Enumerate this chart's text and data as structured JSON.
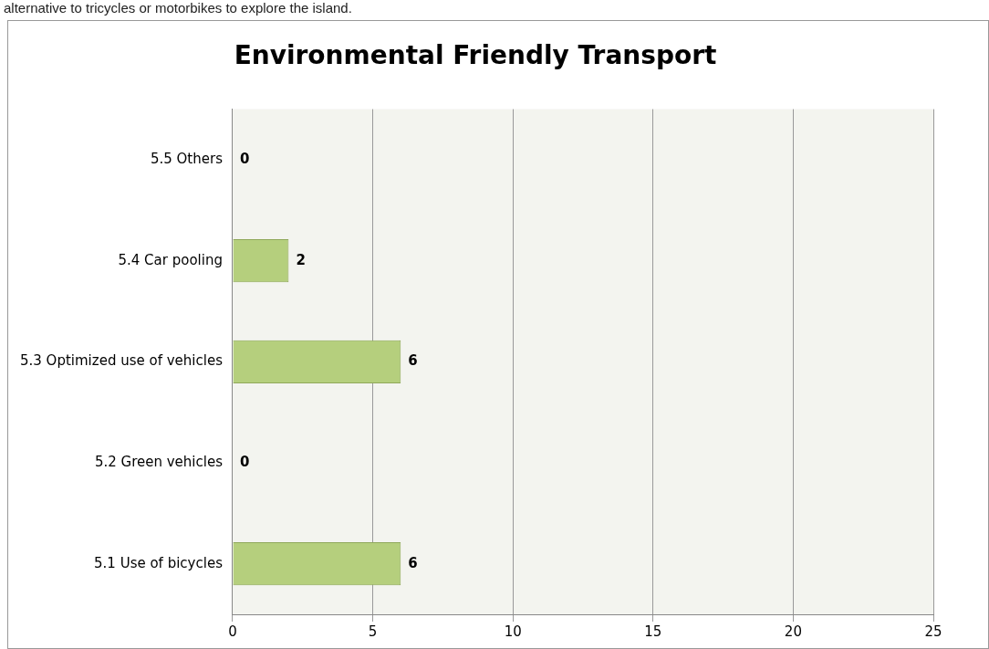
{
  "chart_data": {
    "type": "bar",
    "orientation": "horizontal",
    "title": "Environmental Friendly Transport",
    "annotations": [
      "alternative to tricycles or motorbikes to explore the island."
    ],
    "categories": [
      "5.5 Others",
      "5.4 Car pooling",
      "5.3 Optimized use of vehicles",
      "5.2 Green vehicles",
      "5.1 Use of bicycles"
    ],
    "values": [
      0,
      2,
      6,
      0,
      6
    ],
    "color": "#b5cf7d",
    "xlim": [
      0,
      25
    ],
    "xticks": [
      0,
      5,
      10,
      15,
      20,
      25
    ],
    "grid": "x",
    "legend": false,
    "data_labels": true
  }
}
